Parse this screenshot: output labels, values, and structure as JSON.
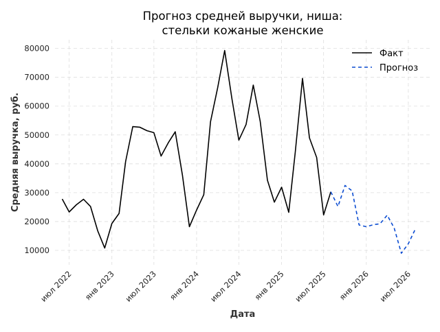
{
  "chart_data": {
    "type": "line",
    "title": [
      "Прогноз средней выручки, ниша:",
      "стельки кожаные женские"
    ],
    "xlabel": "Дата",
    "ylabel": "Средняя выручка, руб.",
    "ylim": [
      5000,
      83000
    ],
    "y_ticks": [
      10000,
      20000,
      30000,
      40000,
      50000,
      60000,
      70000,
      80000
    ],
    "x_range": [
      "2022-05-01",
      "2026-10-01"
    ],
    "x_ticks": [
      {
        "date": "2022-07-01",
        "label": "июл 2022"
      },
      {
        "date": "2023-01-01",
        "label": "янв 2023"
      },
      {
        "date": "2023-07-01",
        "label": "июл 2023"
      },
      {
        "date": "2024-01-01",
        "label": "янв 2024"
      },
      {
        "date": "2024-07-01",
        "label": "июл 2024"
      },
      {
        "date": "2025-01-01",
        "label": "янв 2025"
      },
      {
        "date": "2025-07-01",
        "label": "июл 2025"
      },
      {
        "date": "2026-01-01",
        "label": "янв 2026"
      },
      {
        "date": "2026-07-01",
        "label": "июл 2026"
      }
    ],
    "grid": true,
    "legend_position": "top-right",
    "series": [
      {
        "name": "Факт",
        "color": "#000000",
        "style": "solid",
        "points": [
          [
            "2022-06-01",
            27800
          ],
          [
            "2022-07-01",
            23300
          ],
          [
            "2022-08-01",
            25800
          ],
          [
            "2022-09-01",
            27700
          ],
          [
            "2022-10-01",
            25200
          ],
          [
            "2022-11-01",
            16800
          ],
          [
            "2022-12-01",
            10800
          ],
          [
            "2023-01-01",
            19300
          ],
          [
            "2023-02-01",
            22800
          ],
          [
            "2023-03-01",
            40800
          ],
          [
            "2023-04-01",
            52900
          ],
          [
            "2023-05-01",
            52700
          ],
          [
            "2023-06-01",
            51500
          ],
          [
            "2023-07-01",
            50800
          ],
          [
            "2023-08-01",
            42700
          ],
          [
            "2023-09-01",
            47300
          ],
          [
            "2023-10-01",
            51100
          ],
          [
            "2023-11-01",
            36000
          ],
          [
            "2023-12-01",
            18200
          ],
          [
            "2024-01-01",
            24000
          ],
          [
            "2024-02-01",
            29300
          ],
          [
            "2024-03-01",
            54600
          ],
          [
            "2024-04-01",
            66500
          ],
          [
            "2024-05-01",
            79300
          ],
          [
            "2024-06-01",
            62600
          ],
          [
            "2024-07-01",
            48200
          ],
          [
            "2024-08-01",
            53600
          ],
          [
            "2024-09-01",
            67300
          ],
          [
            "2024-10-01",
            54700
          ],
          [
            "2024-11-01",
            34300
          ],
          [
            "2024-12-01",
            26700
          ],
          [
            "2025-01-01",
            31900
          ],
          [
            "2025-02-01",
            23200
          ],
          [
            "2025-03-01",
            44100
          ],
          [
            "2025-04-01",
            69600
          ],
          [
            "2025-05-01",
            49000
          ],
          [
            "2025-06-01",
            42200
          ],
          [
            "2025-07-01",
            22300
          ],
          [
            "2025-08-01",
            30300
          ]
        ]
      },
      {
        "name": "Прогноз",
        "color": "#0a4bd1",
        "style": "dashed",
        "points": [
          [
            "2025-08-01",
            30300
          ],
          [
            "2025-09-01",
            25200
          ],
          [
            "2025-10-01",
            32500
          ],
          [
            "2025-11-01",
            30600
          ],
          [
            "2025-12-01",
            18800
          ],
          [
            "2026-01-01",
            18200
          ],
          [
            "2026-02-01",
            18900
          ],
          [
            "2026-03-01",
            19200
          ],
          [
            "2026-04-01",
            22200
          ],
          [
            "2026-05-01",
            17800
          ],
          [
            "2026-06-01",
            9000
          ],
          [
            "2026-07-01",
            12300
          ],
          [
            "2026-08-01",
            17500
          ]
        ]
      }
    ]
  }
}
